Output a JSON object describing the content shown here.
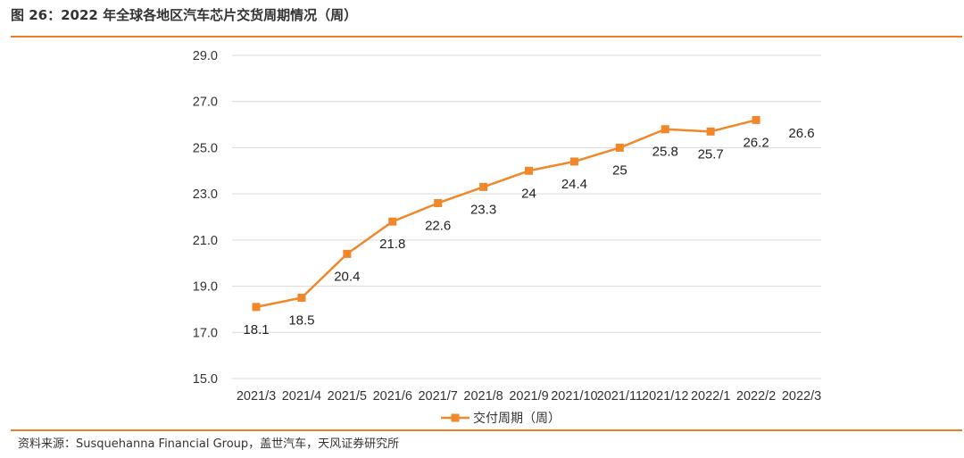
{
  "header": {
    "title": "图 26：2022 年全球各地区汽车芯片交货周期情况（周）"
  },
  "footer": {
    "source": "资料来源：Susquehanna Financial Group，盖世汽车，天风证券研究所"
  },
  "colors": {
    "accent": "#ee7d2b",
    "series": "#f0882a",
    "grid": "#d9d9d9"
  },
  "chart_data": {
    "type": "line",
    "title": "图 26：2022 年全球各地区汽车芯片交货周期情况（周）",
    "xlabel": "",
    "ylabel": "",
    "categories": [
      "2021/3",
      "2021/4",
      "2021/5",
      "2021/6",
      "2021/7",
      "2021/8",
      "2021/9",
      "2021/10",
      "2021/11",
      "2021/12",
      "2022/1",
      "2022/2",
      "2022/3"
    ],
    "y_tick_labels": [
      "15.0",
      "17.0",
      "19.0",
      "21.0",
      "23.0",
      "25.0",
      "27.0",
      "29.0"
    ],
    "ylim": [
      15,
      29
    ],
    "grid": true,
    "legend_position": "bottom",
    "series": [
      {
        "name": "交付周期（周）",
        "values": [
          18.1,
          18.5,
          20.4,
          21.8,
          22.6,
          23.3,
          24,
          24.4,
          25,
          25.8,
          25.7,
          26.2,
          null
        ],
        "data_labels": [
          "18.1",
          "18.5",
          "20.4",
          "21.8",
          "22.6",
          "23.3",
          "24",
          "24.4",
          "25",
          "25.8",
          "25.7",
          "26.2",
          "26.6"
        ]
      }
    ]
  }
}
